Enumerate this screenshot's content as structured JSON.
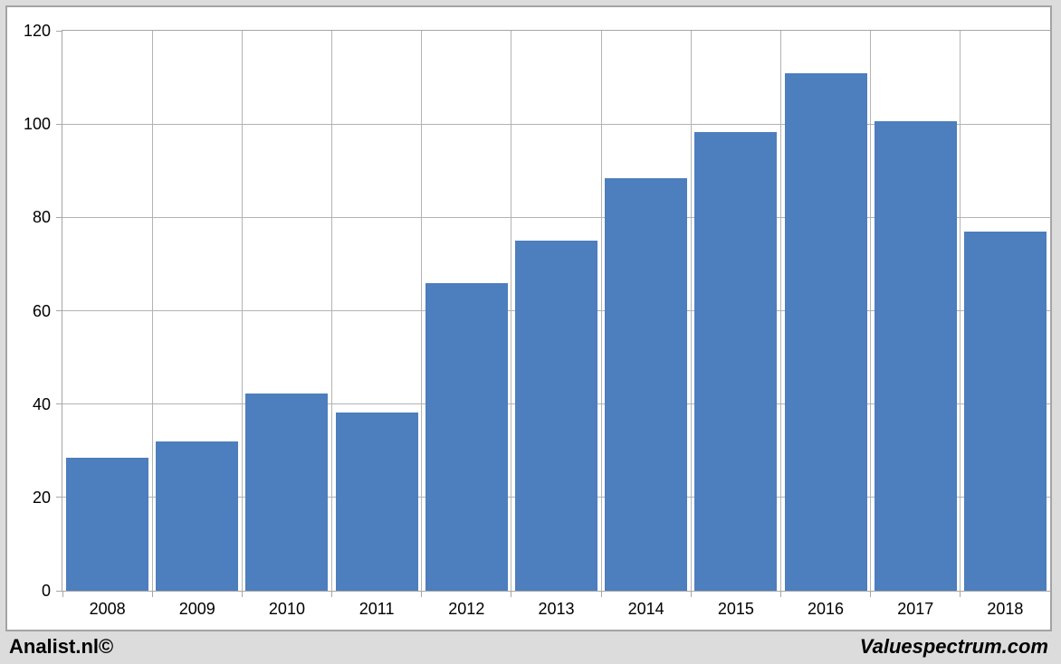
{
  "chart_data": {
    "type": "bar",
    "categories": [
      "2008",
      "2009",
      "2010",
      "2011",
      "2012",
      "2013",
      "2014",
      "2015",
      "2016",
      "2017",
      "2018"
    ],
    "values": [
      28.5,
      32,
      42.3,
      38.2,
      66,
      75,
      88.5,
      98.2,
      110.8,
      100.6,
      77
    ],
    "title": "",
    "xlabel": "",
    "ylabel": "",
    "ylim": [
      0,
      120
    ],
    "yticks": [
      0,
      20,
      40,
      60,
      80,
      100,
      120
    ],
    "grid": "both",
    "legend": "none",
    "bar_color": "#4d7ebd"
  },
  "colors": {
    "bar": "#4d7ebd",
    "gridline": "#b3b3b3",
    "axis": "#a6a6a6",
    "plot_background": "#ffffff",
    "page_background": "#dcdcdc",
    "text": "#000000"
  },
  "footer": {
    "left": "Analist.nl©",
    "right": "Valuespectrum.com"
  }
}
